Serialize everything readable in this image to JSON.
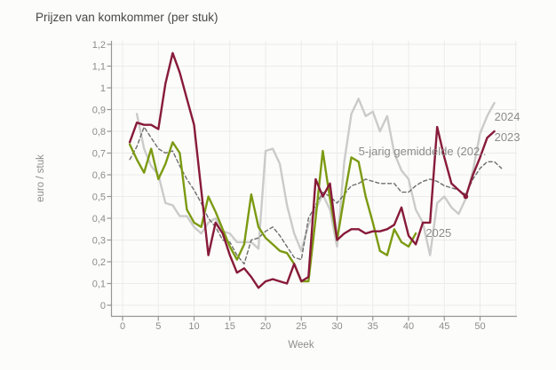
{
  "title": "Prijzen van komkommer (per stuk)",
  "x_axis": {
    "label": "Week",
    "tick_labels": [
      "0",
      "5",
      "10",
      "15",
      "20",
      "25",
      "30",
      "35",
      "40",
      "45",
      "50"
    ]
  },
  "y_axis": {
    "label": "euro / stuk",
    "tick_labels": [
      "0",
      "0,1",
      "0,2",
      "0,3",
      "0,4",
      "0,5",
      "0,6",
      "0,7",
      "0,8",
      "0,9",
      "1",
      "1,1",
      "1,2"
    ]
  },
  "colors": {
    "line_2023": "#871a39",
    "line_2024": "#cbcbcb",
    "line_2025": "#7c9a12",
    "line_avg": "#6e6e6e",
    "grid": "#ebebeb",
    "axis": "#969696",
    "labels": "#8c8c8c"
  },
  "chart_data": {
    "type": "line",
    "title": "Prijzen van komkommer (per stuk)",
    "xlabel": "Week",
    "ylabel": "euro / stuk",
    "xlim": [
      0,
      55
    ],
    "ylim": [
      0,
      1.2
    ],
    "x_ticks": [
      0,
      5,
      10,
      15,
      20,
      25,
      30,
      35,
      40,
      45,
      50
    ],
    "grid_weeks": [
      0,
      5,
      10,
      15,
      20,
      25,
      30,
      35,
      40,
      45,
      50,
      55
    ],
    "y_ticks": [
      0,
      0.1,
      0.2,
      0.3,
      0.4,
      0.5,
      0.6,
      0.7,
      0.8,
      0.9,
      1.0,
      1.1,
      1.2
    ],
    "grid": true,
    "legend_position": "inline-labels",
    "series": [
      {
        "name": "2024",
        "color": "#cbcbcb",
        "style": "solid",
        "width": 2.4,
        "start_week": 2,
        "values": [
          0.88,
          0.72,
          0.64,
          0.6,
          0.47,
          0.46,
          0.41,
          0.41,
          0.36,
          0.33,
          0.38,
          0.4,
          0.34,
          0.33,
          0.29,
          0.29,
          0.29,
          0.26,
          0.71,
          0.72,
          0.65,
          0.46,
          0.33,
          0.25,
          0.37,
          0.44,
          0.51,
          0.44,
          0.27,
          0.66,
          0.88,
          0.95,
          0.87,
          0.89,
          0.8,
          0.87,
          0.7,
          0.62,
          0.58,
          0.44,
          0.38,
          0.23,
          0.47,
          0.5,
          0.45,
          0.42,
          0.49,
          0.62,
          0.79,
          0.87,
          0.93
        ]
      },
      {
        "name": "5-jarig gemiddelde (202..",
        "color": "#6e6e6e",
        "style": "dashed",
        "width": 1.4,
        "start_week": 1,
        "values": [
          0.67,
          0.73,
          0.82,
          0.77,
          0.72,
          0.7,
          0.71,
          0.64,
          0.58,
          0.53,
          0.47,
          0.4,
          0.36,
          0.3,
          0.29,
          0.23,
          0.19,
          0.3,
          0.31,
          0.34,
          0.36,
          0.32,
          0.27,
          0.22,
          0.21,
          0.4,
          0.46,
          0.52,
          0.5,
          0.47,
          0.51,
          0.55,
          0.56,
          0.58,
          0.57,
          0.56,
          0.56,
          0.56,
          0.52,
          0.52,
          0.55,
          0.57,
          0.58,
          0.57,
          0.55,
          0.54,
          0.53,
          0.51,
          0.58,
          0.63,
          0.66,
          0.66,
          0.63
        ]
      },
      {
        "name": "2025",
        "color": "#7c9a12",
        "style": "solid",
        "width": 2.4,
        "start_week": 1,
        "values": [
          0.74,
          0.67,
          0.61,
          0.72,
          0.58,
          0.65,
          0.75,
          0.7,
          0.44,
          0.38,
          0.36,
          0.5,
          0.43,
          0.35,
          0.27,
          0.21,
          0.28,
          0.51,
          0.36,
          0.31,
          0.28,
          0.25,
          0.24,
          0.19,
          0.11,
          0.11,
          0.4,
          0.71,
          0.49,
          0.3,
          0.5,
          0.68,
          0.66,
          0.5,
          0.38,
          0.25,
          0.23,
          0.35,
          0.29,
          0.27,
          0.33
        ]
      },
      {
        "name": "2023",
        "color": "#871a39",
        "style": "solid",
        "width": 2.4,
        "start_week": 1,
        "values": [
          0.75,
          0.84,
          0.83,
          0.83,
          0.81,
          1.02,
          1.16,
          1.07,
          0.95,
          0.83,
          0.53,
          0.23,
          0.38,
          0.33,
          0.23,
          0.15,
          0.17,
          0.13,
          0.08,
          0.11,
          0.12,
          0.11,
          0.1,
          0.19,
          0.11,
          0.13,
          0.58,
          0.5,
          0.56,
          0.3,
          0.33,
          0.35,
          0.35,
          0.33,
          0.34,
          0.34,
          0.35,
          0.37,
          0.45,
          0.32,
          0.28,
          0.38,
          0.38,
          0.82,
          0.68,
          0.56,
          0.53,
          0.5,
          0.6,
          0.68,
          0.77,
          0.8
        ],
        "marker": {
          "week": 48,
          "value": 0.5
        }
      }
    ],
    "annotations": [
      {
        "id": "label-2024",
        "text": "2024",
        "week": 52.0,
        "value": 0.85
      },
      {
        "id": "label-2023",
        "text": "2023",
        "week": 52.0,
        "value": 0.755
      },
      {
        "id": "label-2025",
        "text": "2025",
        "week": 42.4,
        "value": 0.315
      },
      {
        "id": "label-avg",
        "text": "5-jarig gemiddelde (202..",
        "week": 33.0,
        "value": 0.69
      }
    ]
  }
}
